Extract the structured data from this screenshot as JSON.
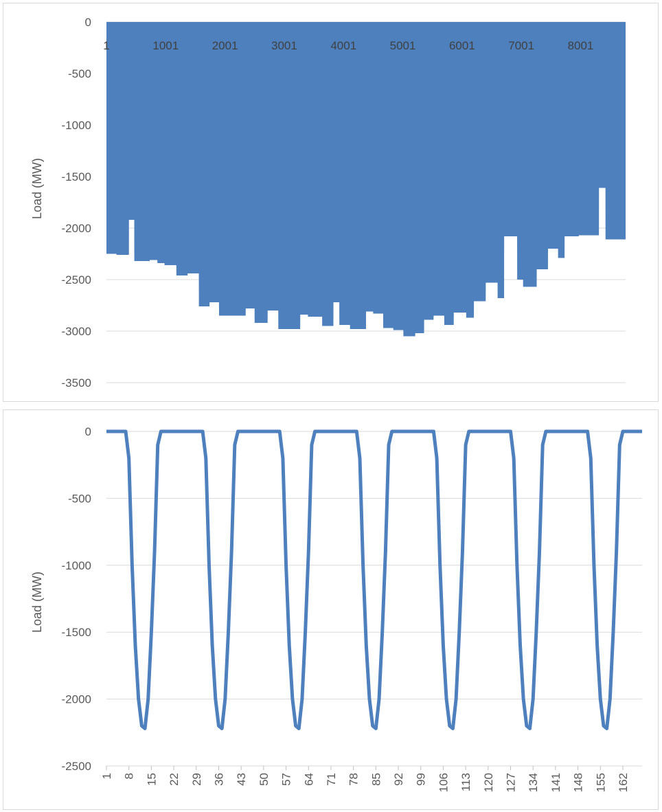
{
  "chart_data": [
    {
      "type": "area",
      "title": "",
      "xlabel": "",
      "ylabel": "Load (MW)",
      "ylim": [
        -3500,
        0
      ],
      "y_ticks": [
        "0",
        "-500",
        "-1000",
        "-1500",
        "-2000",
        "-2500",
        "-3000",
        "-3500"
      ],
      "x_ticks": [
        "1",
        "1001",
        "2001",
        "3001",
        "4001",
        "5001",
        "6001",
        "7001",
        "8001"
      ],
      "x_axis_position": "top",
      "x_range": [
        1,
        8760
      ],
      "grid": true,
      "legend": "none",
      "color": "#4e80bd",
      "series": [
        {
          "x": [
            1,
            170,
            171,
            380,
            381,
            470,
            471,
            730,
            731,
            860,
            861,
            980,
            981,
            1180,
            1181,
            1370,
            1371,
            1560,
            1561,
            1740,
            1741,
            1900,
            1901,
            2140,
            2141,
            2350,
            2351,
            2500,
            2501,
            2720,
            2721,
            2900,
            2901,
            3270,
            3271,
            3400,
            3401,
            3640,
            3641,
            3830,
            3831,
            3930,
            3931,
            4110,
            4111,
            4380,
            4381,
            4500,
            4501,
            4670,
            4671,
            4840,
            4841,
            5010,
            5011,
            5210,
            5211,
            5360,
            5361,
            5520,
            5521,
            5700,
            5701,
            5860,
            5861,
            6070,
            6071,
            6200,
            6201,
            6400,
            6401,
            6600,
            6601,
            6710,
            6711,
            6930,
            6931,
            7030,
            7031,
            7260,
            7261,
            7450,
            7451,
            7620,
            7621,
            7730,
            7731,
            7970,
            7971,
            8310,
            8311,
            8420,
            8421,
            8760
          ],
          "y": [
            -2250,
            -2250,
            -2260,
            -2260,
            -1920,
            -1920,
            -2320,
            -2320,
            -2310,
            -2310,
            -2340,
            -2340,
            -2360,
            -2360,
            -2460,
            -2460,
            -2440,
            -2440,
            -2760,
            -2760,
            -2720,
            -2720,
            -2850,
            -2850,
            -2850,
            -2850,
            -2780,
            -2780,
            -2920,
            -2920,
            -2800,
            -2800,
            -2980,
            -2980,
            -2840,
            -2840,
            -2860,
            -2860,
            -2950,
            -2950,
            -2720,
            -2720,
            -2940,
            -2940,
            -2980,
            -2980,
            -2810,
            -2810,
            -2830,
            -2830,
            -2970,
            -2970,
            -2990,
            -2990,
            -3050,
            -3050,
            -3020,
            -3020,
            -2890,
            -2890,
            -2850,
            -2850,
            -2940,
            -2940,
            -2820,
            -2820,
            -2870,
            -2870,
            -2710,
            -2710,
            -2530,
            -2530,
            -2680,
            -2680,
            -2080,
            -2080,
            -2500,
            -2500,
            -2570,
            -2570,
            -2400,
            -2400,
            -2200,
            -2200,
            -2290,
            -2290,
            -2080,
            -2080,
            -2070,
            -2070,
            -1610,
            -1610,
            -2110,
            -2110
          ]
        }
      ]
    },
    {
      "type": "line",
      "title": "",
      "xlabel": "",
      "ylabel": "Load (MW)",
      "ylim": [
        -2500,
        0
      ],
      "y_ticks": [
        "0",
        "-500",
        "-1000",
        "-1500",
        "-2000",
        "-2500"
      ],
      "x_ticks": [
        "1",
        "8",
        "15",
        "22",
        "29",
        "36",
        "43",
        "50",
        "57",
        "64",
        "71",
        "78",
        "85",
        "92",
        "99",
        "106",
        "113",
        "120",
        "127",
        "134",
        "141",
        "148",
        "155",
        "162"
      ],
      "x_range": [
        1,
        168
      ],
      "grid": true,
      "legend": "none",
      "color": "#4e80bd",
      "series": [
        {
          "daily_profile_hours_1_to_24": [
            0,
            0,
            0,
            0,
            0,
            0,
            0,
            -200,
            -1000,
            -1600,
            -2000,
            -2200,
            -2220,
            -2000,
            -1500,
            -900,
            -100,
            0,
            0,
            0,
            0,
            0,
            0,
            0
          ],
          "repeats_days": 7
        }
      ]
    }
  ]
}
